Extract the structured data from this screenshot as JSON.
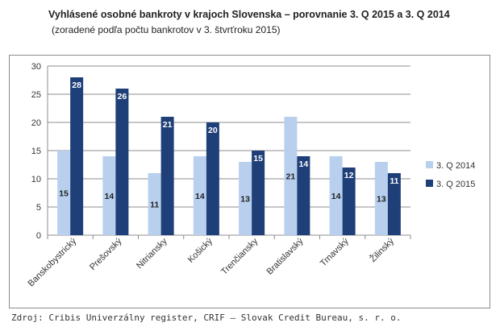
{
  "title": "Vyhlásené osobné bankroty v krajoch Slovenska – porovnanie 3. Q 2015 a 3. Q 2014",
  "subtitle": "(zoradené podľa počtu bankrotov v 3. štvrťroku 2015)",
  "source": "Zdroj: Cribis Univerzálny register, CRIF – Slovak Credit Bureau, s. r. o.",
  "colors": {
    "q2014": "#b8d0ee",
    "q2015": "#1f3f78",
    "grid": "#8c8c8c"
  },
  "chart_data": {
    "type": "bar",
    "title": "Vyhlásené osobné bankroty v krajoch Slovenska – porovnanie 3. Q 2015 a 3. Q 2014",
    "categories": [
      "Banskobystrický",
      "Prešovský",
      "Nitriansky",
      "Košický",
      "Trenčiansky",
      "Bratislavský",
      "Trnavský",
      "Žilinský"
    ],
    "series": [
      {
        "name": "3. Q 2014",
        "values": [
          15,
          14,
          11,
          14,
          13,
          21,
          14,
          13
        ]
      },
      {
        "name": "3. Q 2015",
        "values": [
          28,
          26,
          21,
          20,
          15,
          14,
          12,
          11
        ]
      }
    ],
    "ylim": [
      0,
      30
    ],
    "yticks": [
      0,
      5,
      10,
      15,
      20,
      25,
      30
    ],
    "xlabel": "",
    "ylabel": "",
    "grid": true,
    "legend": "right"
  }
}
